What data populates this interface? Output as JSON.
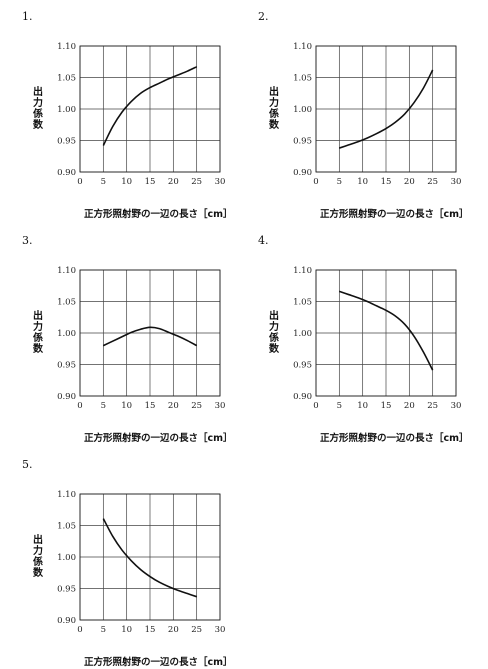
{
  "chart_data": [
    {
      "type": "line",
      "label": "1.",
      "xlabel": "正方形照射野の一辺の長さ［cm］",
      "ylabel": "出力係数",
      "xlim": [
        0,
        30
      ],
      "ylim": [
        0.9,
        1.1
      ],
      "xticks": [
        "0",
        "5",
        "10",
        "15",
        "20",
        "25",
        "30"
      ],
      "yticks": [
        "0.90",
        "0.95",
        "1.00",
        "1.05",
        "1.10"
      ],
      "grid": true,
      "x": [
        5,
        7,
        9,
        11,
        13,
        15,
        17,
        19,
        21,
        23,
        25
      ],
      "y": [
        0.942,
        0.972,
        0.995,
        1.012,
        1.025,
        1.034,
        1.041,
        1.048,
        1.054,
        1.06,
        1.067
      ]
    },
    {
      "type": "line",
      "label": "2.",
      "xlabel": "正方形照射野の一辺の長さ［cm］",
      "ylabel": "出力係数",
      "xlim": [
        0,
        30
      ],
      "ylim": [
        0.9,
        1.1
      ],
      "xticks": [
        "0",
        "5",
        "10",
        "15",
        "20",
        "25",
        "30"
      ],
      "yticks": [
        "0.90",
        "0.95",
        "1.00",
        "1.05",
        "1.10"
      ],
      "grid": true,
      "x": [
        5,
        7,
        9,
        11,
        13,
        15,
        17,
        19,
        21,
        23,
        25
      ],
      "y": [
        0.938,
        0.943,
        0.948,
        0.954,
        0.961,
        0.969,
        0.979,
        0.992,
        1.01,
        1.033,
        1.062
      ]
    },
    {
      "type": "line",
      "label": "3.",
      "xlabel": "正方形照射野の一辺の長さ［cm］",
      "ylabel": "出力係数",
      "xlim": [
        0,
        30
      ],
      "ylim": [
        0.9,
        1.1
      ],
      "xticks": [
        "0",
        "5",
        "10",
        "15",
        "20",
        "25",
        "30"
      ],
      "yticks": [
        "0.90",
        "0.95",
        "1.00",
        "1.05",
        "1.10"
      ],
      "grid": true,
      "x": [
        5,
        7,
        9,
        11,
        13,
        15,
        17,
        19,
        21,
        23,
        25
      ],
      "y": [
        0.98,
        0.987,
        0.994,
        1.001,
        1.006,
        1.009,
        1.007,
        1.001,
        0.995,
        0.988,
        0.98
      ]
    },
    {
      "type": "line",
      "label": "4.",
      "xlabel": "正方形照射野の一辺の長さ［cm］",
      "ylabel": "出力係数",
      "xlim": [
        0,
        30
      ],
      "ylim": [
        0.9,
        1.1
      ],
      "xticks": [
        "0",
        "5",
        "10",
        "15",
        "20",
        "25",
        "30"
      ],
      "yticks": [
        "0.90",
        "0.95",
        "1.00",
        "1.05",
        "1.10"
      ],
      "grid": true,
      "x": [
        5,
        7,
        9,
        11,
        13,
        15,
        17,
        19,
        21,
        23,
        25
      ],
      "y": [
        1.066,
        1.061,
        1.056,
        1.05,
        1.043,
        1.036,
        1.027,
        1.014,
        0.995,
        0.97,
        0.941
      ]
    },
    {
      "type": "line",
      "label": "5.",
      "xlabel": "正方形照射野の一辺の長さ［cm］",
      "ylabel": "出力係数",
      "xlim": [
        0,
        30
      ],
      "ylim": [
        0.9,
        1.1
      ],
      "xticks": [
        "0",
        "5",
        "10",
        "15",
        "20",
        "25",
        "30"
      ],
      "yticks": [
        "0.90",
        "0.95",
        "1.00",
        "1.05",
        "1.10"
      ],
      "grid": true,
      "x": [
        5,
        7,
        9,
        11,
        13,
        15,
        17,
        19,
        21,
        23,
        25
      ],
      "y": [
        1.061,
        1.033,
        1.011,
        0.994,
        0.98,
        0.969,
        0.96,
        0.953,
        0.947,
        0.942,
        0.937
      ]
    }
  ]
}
